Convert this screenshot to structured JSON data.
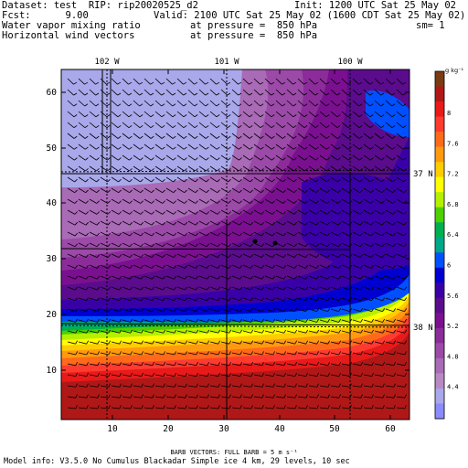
{
  "header": {
    "line1_left": "Dataset: test  RIP: rip20020525_d2",
    "line1_right": "Init: 1200 UTC Sat 25 May 02",
    "line2_left": "Fcst:      9.00",
    "line2_right": "Valid: 2100 UTC Sat 25 May 02 (1600 CDT Sat 25 May 02)",
    "line3_left": "Water vapor mixing ratio",
    "line3_mid": "at pressure =  850 hPa",
    "line3_right": "sm= 1",
    "line4_left": "Horizontal wind vectors",
    "line4_mid": "at pressure =  850 hPa"
  },
  "map": {
    "lon_labels": [
      "102 W",
      "101 W",
      "100 W"
    ],
    "lat_labels": [
      "37 N",
      "38 N"
    ],
    "x_ticks": [
      "10",
      "20",
      "30",
      "40",
      "50",
      "60"
    ],
    "y_ticks": [
      "60",
      "50",
      "40",
      "30",
      "20",
      "10"
    ]
  },
  "colorbar": {
    "unit": "g kg⁻¹",
    "labels": [
      "8",
      "7.6",
      "7.2",
      "6.8",
      "6.4",
      "6",
      "5.6",
      "5.2",
      "4.8",
      "4.4"
    ],
    "colors": [
      "#7a3b12",
      "#b01818",
      "#e81a1a",
      "#ff3b30",
      "#ff6a1a",
      "#ff9a10",
      "#ffcc00",
      "#ffff00",
      "#b4f000",
      "#4cd000",
      "#00b050",
      "#00a888",
      "#0050ff",
      "#0000d0",
      "#3a00a8",
      "#5a0c8c",
      "#7a1090",
      "#8c2c9a",
      "#9b4aa8",
      "#a96ab6",
      "#b78ac4",
      "#a9a8ea",
      "#8b8bff"
    ]
  },
  "footer": {
    "barb_note": "BARB VECTORS:  FULL BARB = 5 m s⁻¹",
    "model_info": "Model info: V3.5.0 No Cumulus Blackadar  Simple ice    4 km,  29 levels,   10 sec"
  }
}
